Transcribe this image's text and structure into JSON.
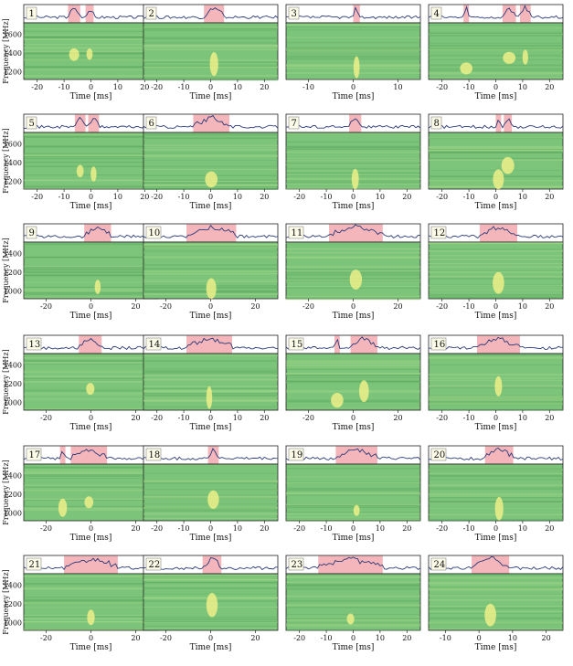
{
  "figure": {
    "panels": [
      {
        "label": "1",
        "tick_labels_x": [
          "-20",
          "-10",
          "0",
          "10",
          "20"
        ],
        "ylabel": "Frequency [MHz]",
        "tick_labels_y": [
          "1600",
          "1400",
          "1200"
        ]
      },
      {
        "label": "2",
        "tick_labels_x": [
          "-20",
          "-10",
          "0",
          "10",
          "20"
        ]
      },
      {
        "label": "3",
        "tick_labels_x": [
          "-10",
          "0",
          "10"
        ]
      },
      {
        "label": "4",
        "tick_labels_x": [
          "-20",
          "-10",
          "0",
          "10",
          "20"
        ]
      },
      {
        "label": "5",
        "tick_labels_x": [
          "-20",
          "-10",
          "0",
          "10",
          "20"
        ],
        "ylabel": "Frequency [MHz]",
        "tick_labels_y": [
          "1600",
          "1400",
          "1200"
        ]
      },
      {
        "label": "6",
        "tick_labels_x": [
          "-20",
          "-10",
          "0",
          "10",
          "20"
        ]
      },
      {
        "label": "7",
        "tick_labels_x": [
          "-20",
          "-10",
          "0",
          "10",
          "20"
        ]
      },
      {
        "label": "8",
        "tick_labels_x": [
          "-20",
          "-10",
          "0",
          "10",
          "20"
        ]
      },
      {
        "label": "9",
        "tick_labels_x": [
          "-20",
          "0",
          "20"
        ],
        "ylabel": "Frequency [MHz]",
        "tick_labels_y": [
          "1400",
          "1200",
          "1000"
        ]
      },
      {
        "label": "10",
        "tick_labels_x": [
          "-20",
          "0",
          "20"
        ]
      },
      {
        "label": "11",
        "tick_labels_x": [
          "-20",
          "0",
          "20"
        ]
      },
      {
        "label": "12",
        "tick_labels_x": [
          "-20",
          "-10",
          "0",
          "10",
          "20"
        ]
      },
      {
        "label": "13",
        "tick_labels_x": [
          "-20",
          "0",
          "20"
        ],
        "ylabel": "Frequency [MHz]",
        "tick_labels_y": [
          "1400",
          "1200",
          "1000"
        ]
      },
      {
        "label": "14",
        "tick_labels_x": [
          "-20",
          "-10",
          "0",
          "10",
          "20"
        ]
      },
      {
        "label": "15",
        "tick_labels_x": [
          "-20",
          "0",
          "20"
        ]
      },
      {
        "label": "16",
        "tick_labels_x": [
          "-20",
          "-10",
          "0",
          "10",
          "20"
        ]
      },
      {
        "label": "17",
        "tick_labels_x": [
          "-20",
          "0",
          "20"
        ],
        "ylabel": "Frequency [MHz]",
        "tick_labels_y": [
          "1400",
          "1200",
          "1000"
        ]
      },
      {
        "label": "18",
        "tick_labels_x": [
          "-20",
          "-10",
          "0",
          "10",
          "20"
        ]
      },
      {
        "label": "19",
        "tick_labels_x": [
          "-20",
          "-10",
          "0",
          "10",
          "20"
        ]
      },
      {
        "label": "20",
        "tick_labels_x": [
          "-20",
          "-10",
          "0",
          "10",
          "20"
        ]
      },
      {
        "label": "21",
        "tick_labels_x": [
          "-20",
          "0",
          "20"
        ],
        "ylabel": "Frequency [MHz]",
        "tick_labels_y": [
          "1400",
          "1200",
          "1000"
        ]
      },
      {
        "label": "22",
        "tick_labels_x": [
          "-20",
          "0",
          "20"
        ]
      },
      {
        "label": "23",
        "tick_labels_x": [
          "-20",
          "-10",
          "0",
          "10",
          "20"
        ]
      },
      {
        "label": "24",
        "tick_labels_x": [
          "-10",
          "0",
          "10",
          "20"
        ]
      }
    ],
    "xlabel": "Time [ms]",
    "colors": {
      "dynspec_base": "#7cc47a",
      "highlight": "#f2a9ae",
      "profile_line": "#2b3a7a",
      "burst": "#f4f28a"
    }
  }
}
